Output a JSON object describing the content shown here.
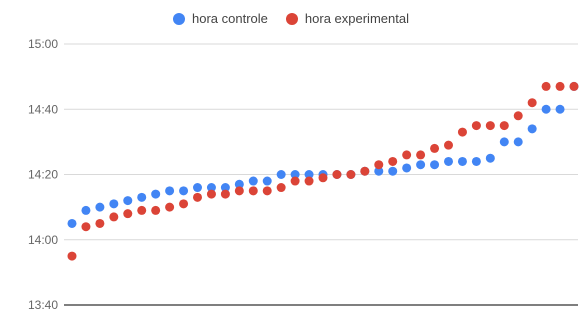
{
  "chart_data": {
    "type": "scatter",
    "title": "",
    "xlabel": "",
    "ylabel": "",
    "y_unit": "time (HH:MM)",
    "ylim": [
      "13:40",
      "15:00"
    ],
    "y_ticks": [
      "13:40",
      "14:00",
      "14:20",
      "14:40",
      "15:00"
    ],
    "x_ticks": [],
    "grid": true,
    "legend_position": "top-center",
    "series": [
      {
        "name": "hora controle",
        "color": "#4285F4",
        "x": [
          1,
          2,
          3,
          4,
          5,
          6,
          7,
          8,
          9,
          10,
          11,
          12,
          13,
          14,
          15,
          16,
          17,
          18,
          19,
          20,
          21,
          22,
          23,
          24,
          25,
          26,
          27,
          28,
          29,
          30,
          31,
          32,
          33,
          34,
          35,
          36,
          37
        ],
        "y": [
          "14:05",
          "14:09",
          "14:10",
          "14:11",
          "14:12",
          "14:13",
          "14:14",
          "14:15",
          "14:15",
          "14:16",
          "14:16",
          "14:16",
          "14:17",
          "14:18",
          "14:18",
          "14:20",
          "14:20",
          "14:20",
          "14:20",
          "14:20",
          "14:20",
          "14:21",
          "14:21",
          "14:21",
          "14:22",
          "14:23",
          "14:23",
          "14:24",
          "14:24",
          "14:24",
          "14:25",
          "14:30",
          "14:30",
          "14:34",
          "14:40",
          "14:40",
          "14:47"
        ]
      },
      {
        "name": "hora experimental",
        "color": "#DB4437",
        "x": [
          1,
          2,
          3,
          4,
          5,
          6,
          7,
          8,
          9,
          10,
          11,
          12,
          13,
          14,
          15,
          16,
          17,
          18,
          19,
          20,
          21,
          22,
          23,
          24,
          25,
          26,
          27,
          28,
          29,
          30,
          31,
          32,
          33,
          34,
          35,
          36,
          37
        ],
        "y": [
          "13:55",
          "14:04",
          "14:05",
          "14:07",
          "14:08",
          "14:09",
          "14:09",
          "14:10",
          "14:11",
          "14:13",
          "14:14",
          "14:14",
          "14:15",
          "14:15",
          "14:15",
          "14:16",
          "14:18",
          "14:18",
          "14:19",
          "14:20",
          "14:20",
          "14:21",
          "14:23",
          "14:24",
          "14:26",
          "14:26",
          "14:28",
          "14:29",
          "14:33",
          "14:35",
          "14:35",
          "14:35",
          "14:38",
          "14:42",
          "14:47",
          "14:47",
          "14:47"
        ]
      }
    ]
  }
}
